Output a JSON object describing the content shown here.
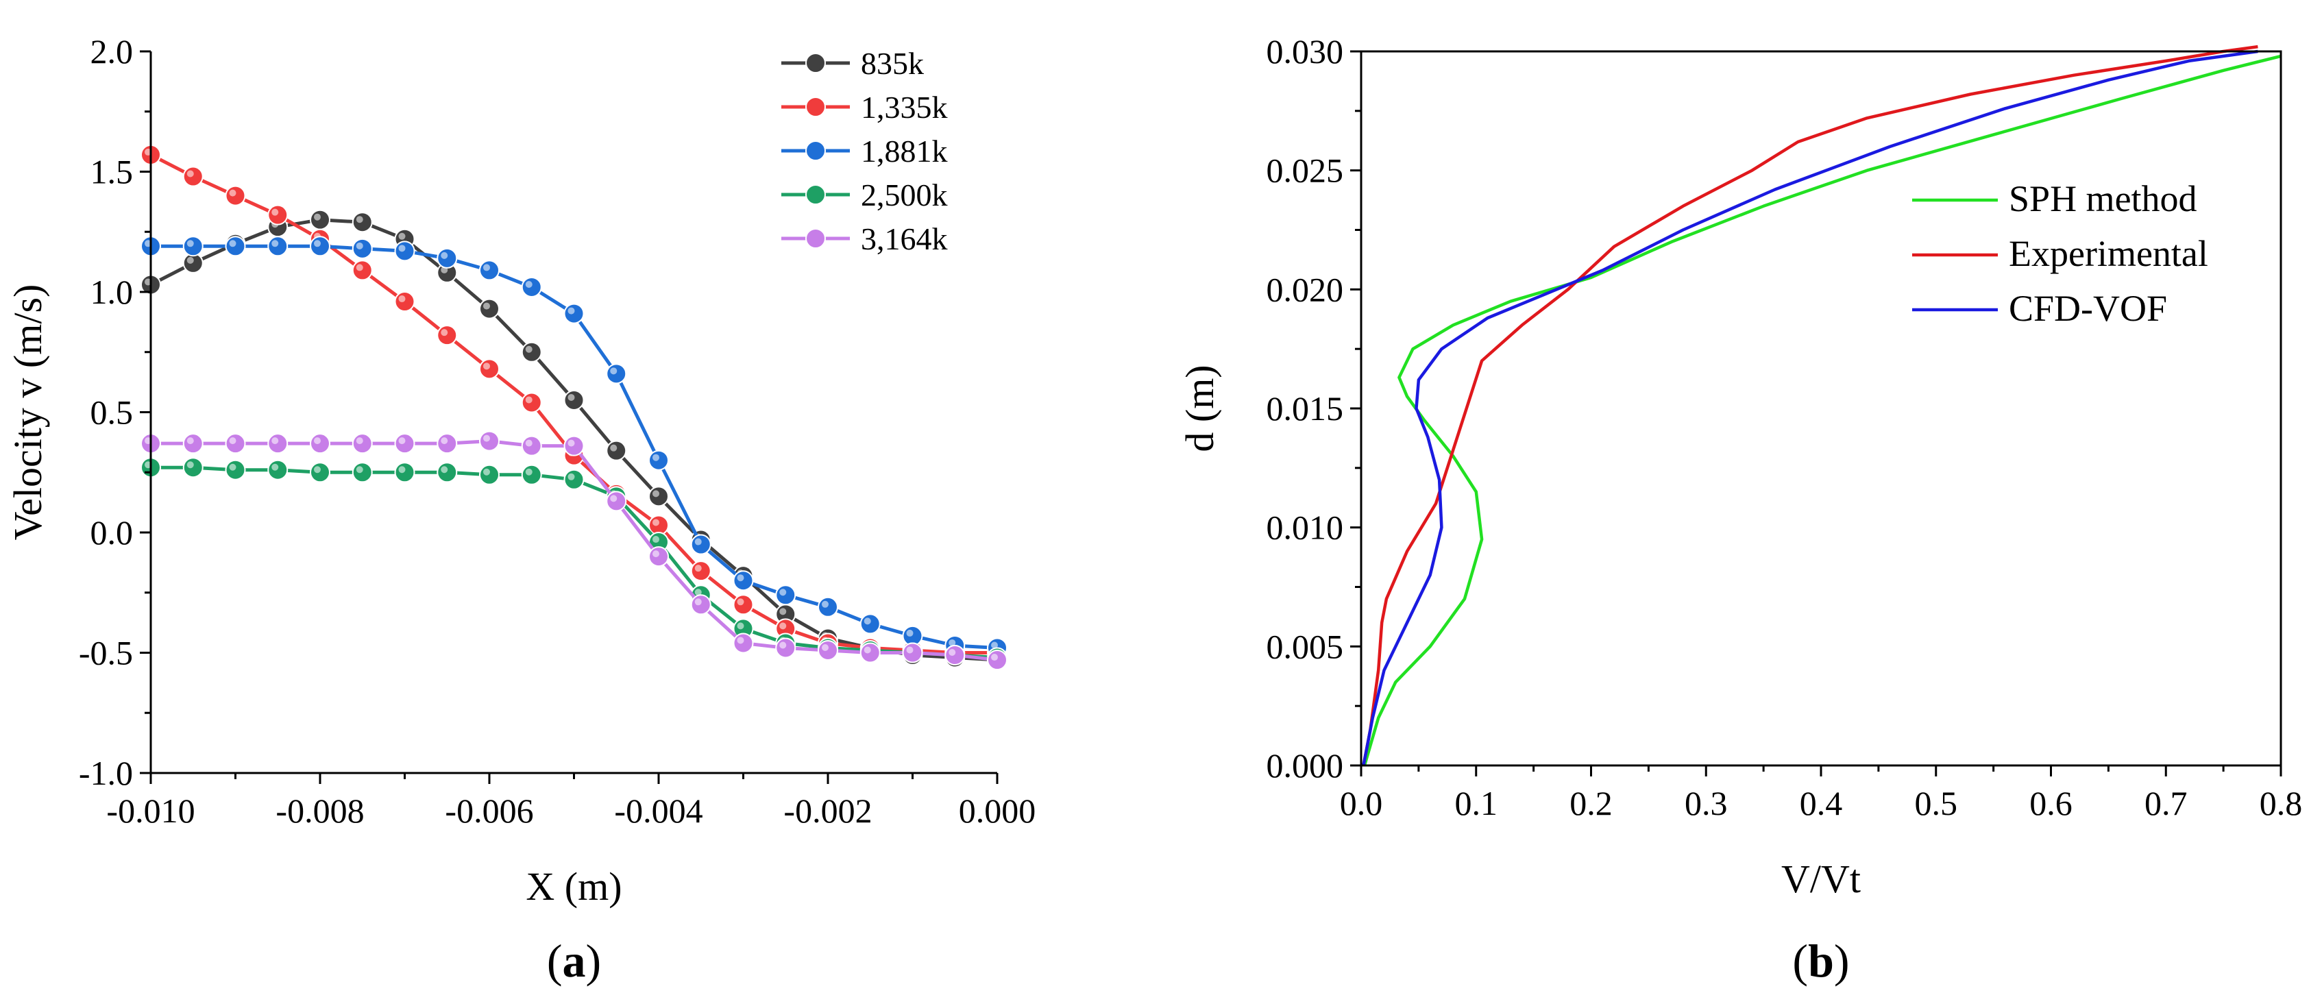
{
  "chart_data": [
    {
      "panel": "a",
      "type": "line",
      "caption": "(a)",
      "caption_letter": "a",
      "xlabel": "X (m)",
      "ylabel": "Velocity v (m/s)",
      "xlim": [
        -0.01,
        0.0
      ],
      "ylim": [
        -1.0,
        2.0
      ],
      "xticks": [
        -0.01,
        -0.008,
        -0.006,
        -0.004,
        -0.002,
        0.0
      ],
      "xtick_labels": [
        "-0.010",
        "-0.008",
        "-0.006",
        "-0.004",
        "-0.002",
        "0.000"
      ],
      "yticks": [
        -1.0,
        -0.5,
        0.0,
        0.5,
        1.0,
        1.5,
        2.0
      ],
      "ytick_labels": [
        "-1.0",
        "-0.5",
        "0.0",
        "0.5",
        "1.0",
        "1.5",
        "2.0"
      ],
      "legend_position": "top-right",
      "x": [
        -0.01,
        -0.0095,
        -0.009,
        -0.0085,
        -0.008,
        -0.0075,
        -0.007,
        -0.0065,
        -0.006,
        -0.0055,
        -0.005,
        -0.0045,
        -0.004,
        -0.0035,
        -0.003,
        -0.0025,
        -0.002,
        -0.0015,
        -0.001,
        -0.0005,
        0.0
      ],
      "series": [
        {
          "name": "835k",
          "color": "#404040",
          "values": [
            1.03,
            1.12,
            1.2,
            1.27,
            1.3,
            1.29,
            1.22,
            1.08,
            0.93,
            0.75,
            0.55,
            0.34,
            0.15,
            -0.03,
            -0.18,
            -0.34,
            -0.44,
            -0.48,
            -0.51,
            -0.52,
            -0.53
          ]
        },
        {
          "name": "1,335k",
          "color": "#f03c3c",
          "values": [
            1.57,
            1.48,
            1.4,
            1.32,
            1.22,
            1.09,
            0.96,
            0.82,
            0.68,
            0.54,
            0.32,
            0.16,
            0.03,
            -0.16,
            -0.3,
            -0.4,
            -0.46,
            -0.48,
            -0.49,
            -0.5,
            -0.5
          ]
        },
        {
          "name": "1,881k",
          "color": "#1f6fd6",
          "values": [
            1.19,
            1.19,
            1.19,
            1.19,
            1.19,
            1.18,
            1.17,
            1.14,
            1.09,
            1.02,
            0.91,
            0.66,
            0.3,
            -0.05,
            -0.2,
            -0.26,
            -0.31,
            -0.38,
            -0.43,
            -0.47,
            -0.48
          ]
        },
        {
          "name": "2,500k",
          "color": "#1ea064",
          "values": [
            0.27,
            0.27,
            0.26,
            0.26,
            0.25,
            0.25,
            0.25,
            0.25,
            0.24,
            0.24,
            0.22,
            0.15,
            -0.04,
            -0.26,
            -0.4,
            -0.46,
            -0.48,
            -0.49,
            -0.5,
            -0.51,
            -0.52
          ]
        },
        {
          "name": "3,164k",
          "color": "#c77ee8",
          "values": [
            0.37,
            0.37,
            0.37,
            0.37,
            0.37,
            0.37,
            0.37,
            0.37,
            0.38,
            0.36,
            0.36,
            0.13,
            -0.1,
            -0.3,
            -0.46,
            -0.48,
            -0.49,
            -0.5,
            -0.5,
            -0.51,
            -0.53
          ]
        }
      ]
    },
    {
      "panel": "b",
      "type": "line",
      "caption": "(b)",
      "caption_letter": "b",
      "xlabel": "V/Vt",
      "ylabel": "d (m)",
      "xlim": [
        0.0,
        0.8
      ],
      "ylim": [
        0.0,
        0.03
      ],
      "xticks": [
        0.0,
        0.1,
        0.2,
        0.3,
        0.4,
        0.5,
        0.6,
        0.7,
        0.8
      ],
      "xtick_labels": [
        "0.0",
        "0.1",
        "0.2",
        "0.3",
        "0.4",
        "0.5",
        "0.6",
        "0.7",
        "0.8"
      ],
      "yticks": [
        0.0,
        0.005,
        0.01,
        0.015,
        0.02,
        0.025,
        0.03
      ],
      "ytick_labels": [
        "0.000",
        "0.005",
        "0.010",
        "0.015",
        "0.020",
        "0.025",
        "0.030"
      ],
      "legend_position": "right",
      "series": [
        {
          "name": "SPH method",
          "color": "#22e022",
          "x": [
            0.003,
            0.015,
            0.03,
            0.06,
            0.09,
            0.105,
            0.1,
            0.08,
            0.055,
            0.04,
            0.033,
            0.045,
            0.08,
            0.13,
            0.2,
            0.27,
            0.35,
            0.44,
            0.55,
            0.66,
            0.75,
            0.8
          ],
          "y": [
            0.0,
            0.002,
            0.0035,
            0.005,
            0.007,
            0.0095,
            0.0115,
            0.013,
            0.0145,
            0.0155,
            0.0163,
            0.0175,
            0.0185,
            0.0195,
            0.0205,
            0.022,
            0.0235,
            0.025,
            0.0265,
            0.028,
            0.0292,
            0.0298
          ]
        },
        {
          "name": "Experimental",
          "color": "#e0181c",
          "x": [
            0.002,
            0.008,
            0.015,
            0.018,
            0.022,
            0.04,
            0.065,
            0.085,
            0.105,
            0.14,
            0.18,
            0.22,
            0.28,
            0.34,
            0.38,
            0.44,
            0.53,
            0.62,
            0.7,
            0.75,
            0.78
          ],
          "y": [
            0.0,
            0.0015,
            0.004,
            0.006,
            0.007,
            0.009,
            0.011,
            0.014,
            0.017,
            0.0185,
            0.02,
            0.0218,
            0.0235,
            0.025,
            0.0262,
            0.0272,
            0.0282,
            0.029,
            0.0296,
            0.03,
            0.0302
          ]
        },
        {
          "name": "CFD-VOF",
          "color": "#1a1ae0",
          "x": [
            0.002,
            0.01,
            0.02,
            0.04,
            0.06,
            0.07,
            0.068,
            0.058,
            0.048,
            0.05,
            0.07,
            0.11,
            0.16,
            0.21,
            0.28,
            0.36,
            0.46,
            0.56,
            0.65,
            0.72,
            0.78
          ],
          "y": [
            0.0,
            0.002,
            0.004,
            0.006,
            0.008,
            0.01,
            0.012,
            0.0138,
            0.015,
            0.0162,
            0.0175,
            0.0188,
            0.0198,
            0.0208,
            0.0225,
            0.0242,
            0.026,
            0.0276,
            0.0288,
            0.0296,
            0.03
          ]
        }
      ]
    }
  ]
}
